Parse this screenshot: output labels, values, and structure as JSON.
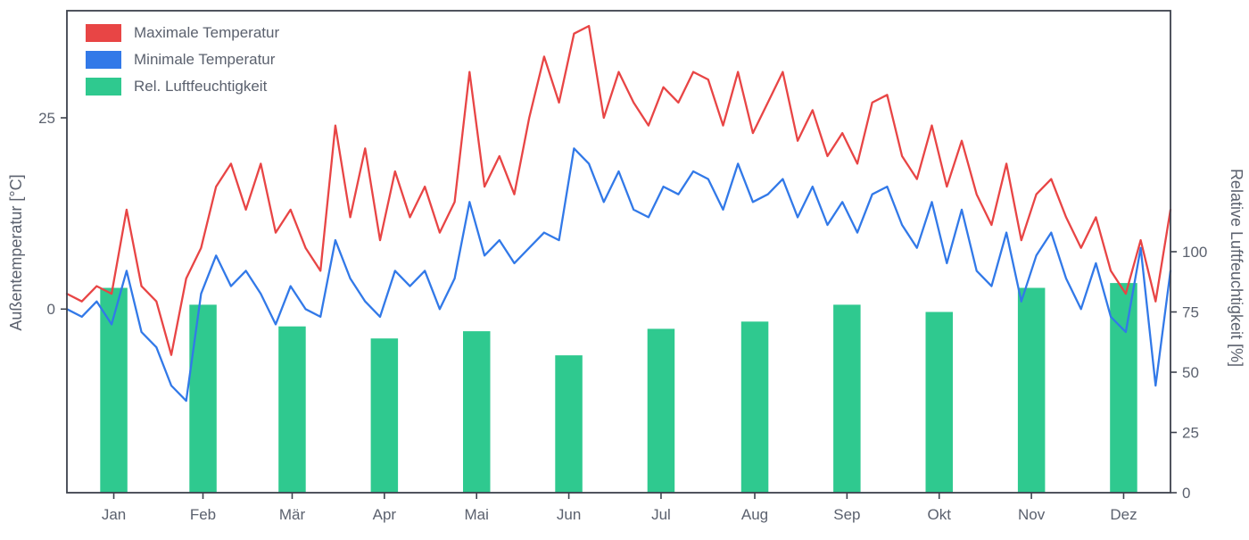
{
  "chart_data": {
    "type": "line+bar",
    "title": "",
    "left_axis": {
      "label": "Außentemperatur [°C]",
      "ticks": [
        0,
        25
      ],
      "range": [
        -24,
        39
      ]
    },
    "right_axis": {
      "label": "Relative Luftfeuchtigkeit [%]",
      "ticks": [
        0,
        25,
        50,
        75,
        100
      ],
      "range": [
        0,
        200
      ]
    },
    "x_axis": {
      "tick_labels": [
        "Jan",
        "Feb",
        "Mär",
        "Apr",
        "Mai",
        "Jun",
        "Jul",
        "Aug",
        "Sep",
        "Okt",
        "Nov",
        "Dez"
      ],
      "month_days": [
        31,
        28,
        31,
        30,
        31,
        30,
        31,
        31,
        30,
        31,
        30,
        31
      ]
    },
    "legend": [
      {
        "label": "Maximale Temperatur",
        "color": "#e84545"
      },
      {
        "label": "Minimale Temperatur",
        "color": "#3279e8"
      },
      {
        "label": "Rel. Luftfeuchtigkeit",
        "color": "#2fc98f"
      }
    ],
    "series": [
      {
        "name": "Maximale Temperatur",
        "type": "line",
        "axis": "left",
        "color": "#e84545",
        "values": [
          2,
          1,
          3,
          2,
          13,
          3,
          1,
          -6,
          4,
          8,
          16,
          19,
          13,
          19,
          10,
          13,
          8,
          5,
          24,
          12,
          21,
          9,
          18,
          12,
          16,
          10,
          14,
          31,
          16,
          20,
          15,
          25,
          33,
          27,
          36,
          37,
          25,
          31,
          27,
          24,
          29,
          27,
          31,
          30,
          24,
          31,
          23,
          27,
          31,
          22,
          26,
          20,
          23,
          19,
          27,
          28,
          20,
          17,
          24,
          16,
          22,
          15,
          11,
          19,
          9,
          15,
          17,
          12,
          8,
          12,
          5,
          2,
          9,
          1,
          13
        ]
      },
      {
        "name": "Minimale Temperatur",
        "type": "line",
        "axis": "left",
        "color": "#3279e8",
        "values": [
          0,
          -1,
          1,
          -2,
          5,
          -3,
          -5,
          -10,
          -12,
          2,
          7,
          3,
          5,
          2,
          -2,
          3,
          0,
          -1,
          9,
          4,
          1,
          -1,
          5,
          3,
          5,
          0,
          4,
          14,
          7,
          9,
          6,
          8,
          10,
          9,
          21,
          19,
          14,
          18,
          13,
          12,
          16,
          15,
          18,
          17,
          13,
          19,
          14,
          15,
          17,
          12,
          16,
          11,
          14,
          10,
          15,
          16,
          11,
          8,
          14,
          6,
          13,
          5,
          3,
          10,
          1,
          7,
          10,
          4,
          0,
          6,
          -1,
          -3,
          8,
          -10,
          5
        ]
      },
      {
        "name": "Rel. Luftfeuchtigkeit",
        "type": "bar",
        "axis": "right",
        "color": "#2fc98f",
        "values": [
          85,
          78,
          69,
          64,
          67,
          57,
          68,
          71,
          78,
          75,
          85,
          87
        ]
      }
    ],
    "style": {
      "axis_color": "#3d424d",
      "text_color": "#5b616e",
      "bar_width_days": 9,
      "line_width": 2.3
    }
  }
}
